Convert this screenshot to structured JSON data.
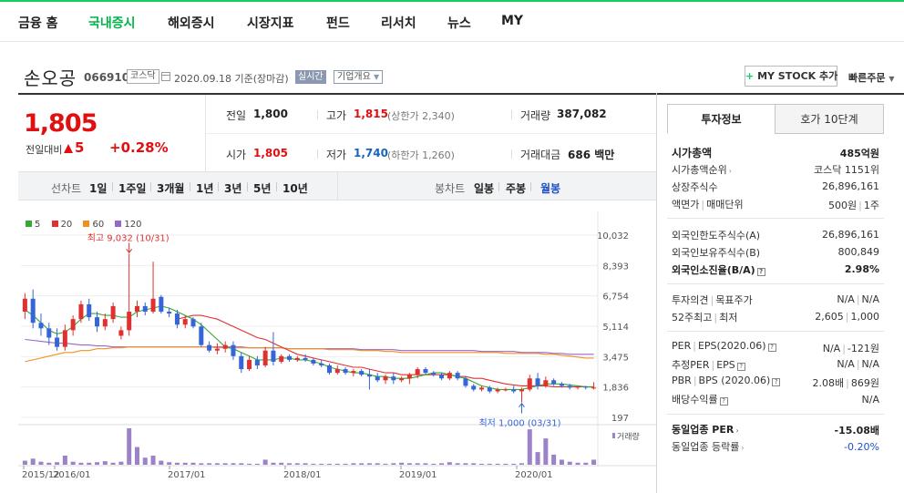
{
  "gnb": {
    "items": [
      {
        "label": "금융 홈",
        "active": false
      },
      {
        "label": "국내증시",
        "active": true
      },
      {
        "label": "해외증시",
        "active": false
      },
      {
        "label": "시장지표",
        "active": false
      },
      {
        "label": "펀드",
        "active": false
      },
      {
        "label": "리서치",
        "active": false
      },
      {
        "label": "뉴스",
        "active": false
      },
      {
        "label": "MY",
        "active": false
      }
    ]
  },
  "stock": {
    "name": "손오공",
    "code": "066910",
    "market": "코스닥",
    "date": "2020.09.18",
    "date_suffix": "기준(장마감)",
    "realtime": "실시간",
    "overview": "기업개요",
    "mystock_label": "MY STOCK 추가",
    "quick_order": "빠른주문"
  },
  "price": {
    "now": "1,805",
    "diff_label": "전일대비",
    "diff": "5",
    "pct": "+0.28%"
  },
  "info": {
    "prev_label": "전일",
    "prev": "1,800",
    "high_label": "고가",
    "high": "1,815",
    "upper_limit": "(상한가 2,340)",
    "volume_label": "거래량",
    "volume": "387,082",
    "open_label": "시가",
    "open": "1,805",
    "low_label": "저가",
    "low": "1,740",
    "lower_limit": "(하한가 1,260)",
    "amount_label": "거래대금",
    "amount": "686 백만"
  },
  "tabs": {
    "line_label": "선차트",
    "periods": [
      "1일",
      "1주일",
      "3개월",
      "1년",
      "3년",
      "5년",
      "10년"
    ],
    "candle_label": "봉차트",
    "candles": [
      "일봉",
      "주봉",
      "월봉"
    ],
    "selected_candle": "월봉"
  },
  "chart_data": {
    "type": "candlestick",
    "legend": [
      {
        "name": "5",
        "color": "#33aa33"
      },
      {
        "name": "20",
        "color": "#e03030"
      },
      {
        "name": "60",
        "color": "#f09020"
      },
      {
        "name": "120",
        "color": "#9966cc"
      }
    ],
    "y_ticks": [
      "10,032",
      "8,393",
      "6,754",
      "5,114",
      "3,475",
      "1,836",
      "197"
    ],
    "y_range": [
      197,
      10032
    ],
    "x_ticks": [
      "2015/12",
      "2016/01",
      "2017/01",
      "2018/01",
      "2019/01",
      "2020/01"
    ],
    "annotation_high": "최고 9,032 (10/31)",
    "annotation_low": "최저 1,000 (03/31)",
    "volume_label": "거래량",
    "candles": [
      {
        "x": 0,
        "o": 5900,
        "h": 6900,
        "l": 5500,
        "c": 6600
      },
      {
        "x": 1,
        "o": 6600,
        "h": 7100,
        "l": 5000,
        "c": 5300
      },
      {
        "x": 2,
        "o": 5300,
        "h": 5800,
        "l": 4600,
        "c": 5000
      },
      {
        "x": 3,
        "o": 5000,
        "h": 5300,
        "l": 4100,
        "c": 4500
      },
      {
        "x": 4,
        "o": 4500,
        "h": 5000,
        "l": 3800,
        "c": 4000
      },
      {
        "x": 5,
        "o": 4000,
        "h": 5200,
        "l": 3800,
        "c": 4900
      },
      {
        "x": 6,
        "o": 4900,
        "h": 5700,
        "l": 4600,
        "c": 5500
      },
      {
        "x": 7,
        "o": 5500,
        "h": 6500,
        "l": 5300,
        "c": 6300
      },
      {
        "x": 8,
        "o": 6300,
        "h": 6600,
        "l": 5400,
        "c": 5600
      },
      {
        "x": 9,
        "o": 5600,
        "h": 5900,
        "l": 4800,
        "c": 5100
      },
      {
        "x": 10,
        "o": 5100,
        "h": 5800,
        "l": 4900,
        "c": 5500
      },
      {
        "x": 11,
        "o": 5500,
        "h": 6400,
        "l": 5300,
        "c": 6200
      },
      {
        "x": 12,
        "o": 4600,
        "h": 5100,
        "l": 4400,
        "c": 4900
      },
      {
        "x": 13,
        "o": 4900,
        "h": 9032,
        "l": 4600,
        "c": 5900
      },
      {
        "x": 14,
        "o": 5900,
        "h": 6500,
        "l": 5600,
        "c": 6200
      },
      {
        "x": 15,
        "o": 6200,
        "h": 6400,
        "l": 5700,
        "c": 5900
      },
      {
        "x": 16,
        "o": 5900,
        "h": 8600,
        "l": 5800,
        "c": 6600
      },
      {
        "x": 17,
        "o": 6700,
        "h": 6800,
        "l": 5800,
        "c": 5900
      },
      {
        "x": 18,
        "o": 5900,
        "h": 6100,
        "l": 5600,
        "c": 5800
      },
      {
        "x": 19,
        "o": 5800,
        "h": 6000,
        "l": 5000,
        "c": 5200
      },
      {
        "x": 20,
        "o": 5200,
        "h": 5700,
        "l": 5000,
        "c": 5500
      },
      {
        "x": 21,
        "o": 5500,
        "h": 5600,
        "l": 5000,
        "c": 5100
      },
      {
        "x": 22,
        "o": 5100,
        "h": 5300,
        "l": 4000,
        "c": 4100
      },
      {
        "x": 23,
        "o": 4100,
        "h": 4300,
        "l": 3700,
        "c": 3800
      },
      {
        "x": 24,
        "o": 3800,
        "h": 4200,
        "l": 3600,
        "c": 3900
      },
      {
        "x": 25,
        "o": 3900,
        "h": 4300,
        "l": 3700,
        "c": 4100
      },
      {
        "x": 26,
        "o": 4100,
        "h": 4300,
        "l": 3300,
        "c": 3500
      },
      {
        "x": 27,
        "o": 3500,
        "h": 3700,
        "l": 2600,
        "c": 2800
      },
      {
        "x": 28,
        "o": 2800,
        "h": 3500,
        "l": 2700,
        "c": 3300
      },
      {
        "x": 29,
        "o": 3300,
        "h": 3500,
        "l": 2800,
        "c": 3000
      },
      {
        "x": 30,
        "o": 3000,
        "h": 4000,
        "l": 2900,
        "c": 3800
      },
      {
        "x": 31,
        "o": 3800,
        "h": 4800,
        "l": 3000,
        "c": 3200
      },
      {
        "x": 32,
        "o": 3200,
        "h": 3600,
        "l": 3100,
        "c": 3500
      },
      {
        "x": 33,
        "o": 3500,
        "h": 3600,
        "l": 3200,
        "c": 3300
      },
      {
        "x": 34,
        "o": 3300,
        "h": 3500,
        "l": 3200,
        "c": 3400
      },
      {
        "x": 35,
        "o": 3400,
        "h": 3600,
        "l": 3200,
        "c": 3300
      },
      {
        "x": 36,
        "o": 3300,
        "h": 3400,
        "l": 3000,
        "c": 3100
      },
      {
        "x": 37,
        "o": 3100,
        "h": 3300,
        "l": 2900,
        "c": 3000
      },
      {
        "x": 38,
        "o": 3000,
        "h": 3100,
        "l": 2500,
        "c": 2600
      },
      {
        "x": 39,
        "o": 2600,
        "h": 3000,
        "l": 2500,
        "c": 2800
      },
      {
        "x": 40,
        "o": 2800,
        "h": 2900,
        "l": 2500,
        "c": 2600
      },
      {
        "x": 41,
        "o": 2600,
        "h": 2800,
        "l": 2400,
        "c": 2700
      },
      {
        "x": 42,
        "o": 2700,
        "h": 2800,
        "l": 2400,
        "c": 2500
      },
      {
        "x": 43,
        "o": 2500,
        "h": 2800,
        "l": 1700,
        "c": 2400
      },
      {
        "x": 44,
        "o": 2400,
        "h": 2600,
        "l": 2100,
        "c": 2200
      },
      {
        "x": 45,
        "o": 2200,
        "h": 2500,
        "l": 2000,
        "c": 2400
      },
      {
        "x": 46,
        "o": 2400,
        "h": 2600,
        "l": 2000,
        "c": 2200
      },
      {
        "x": 47,
        "o": 2200,
        "h": 2400,
        "l": 2100,
        "c": 2300
      },
      {
        "x": 48,
        "o": 2300,
        "h": 2600,
        "l": 2000,
        "c": 2500
      },
      {
        "x": 49,
        "o": 2500,
        "h": 2900,
        "l": 2300,
        "c": 2800
      },
      {
        "x": 50,
        "o": 2800,
        "h": 2900,
        "l": 2500,
        "c": 2600
      },
      {
        "x": 51,
        "o": 2600,
        "h": 2700,
        "l": 2400,
        "c": 2500
      },
      {
        "x": 52,
        "o": 2500,
        "h": 2600,
        "l": 2200,
        "c": 2300
      },
      {
        "x": 53,
        "o": 2300,
        "h": 2700,
        "l": 2200,
        "c": 2600
      },
      {
        "x": 54,
        "o": 2600,
        "h": 2700,
        "l": 2200,
        "c": 2300
      },
      {
        "x": 55,
        "o": 2300,
        "h": 2400,
        "l": 1800,
        "c": 1900
      },
      {
        "x": 56,
        "o": 1900,
        "h": 2000,
        "l": 1600,
        "c": 1700
      },
      {
        "x": 57,
        "o": 1700,
        "h": 1900,
        "l": 1600,
        "c": 1800
      },
      {
        "x": 58,
        "o": 1800,
        "h": 1900,
        "l": 1500,
        "c": 1600
      },
      {
        "x": 59,
        "o": 1600,
        "h": 1800,
        "l": 1500,
        "c": 1700
      },
      {
        "x": 60,
        "o": 1700,
        "h": 1800,
        "l": 1600,
        "c": 1700
      },
      {
        "x": 61,
        "o": 1700,
        "h": 1900,
        "l": 1500,
        "c": 1600
      },
      {
        "x": 62,
        "o": 1600,
        "h": 1800,
        "l": 1000,
        "c": 1700
      },
      {
        "x": 63,
        "o": 1700,
        "h": 2500,
        "l": 1600,
        "c": 2300
      },
      {
        "x": 64,
        "o": 2300,
        "h": 2600,
        "l": 1700,
        "c": 1900
      },
      {
        "x": 65,
        "o": 1900,
        "h": 2400,
        "l": 1800,
        "c": 2200
      },
      {
        "x": 66,
        "o": 2200,
        "h": 2300,
        "l": 1900,
        "c": 2000
      },
      {
        "x": 67,
        "o": 2000,
        "h": 2100,
        "l": 1800,
        "c": 1900
      },
      {
        "x": 68,
        "o": 1900,
        "h": 2000,
        "l": 1700,
        "c": 1800
      },
      {
        "x": 69,
        "o": 1800,
        "h": 1900,
        "l": 1700,
        "c": 1850
      },
      {
        "x": 70,
        "o": 1850,
        "h": 1900,
        "l": 1700,
        "c": 1800
      },
      {
        "x": 71,
        "o": 1800,
        "h": 2100,
        "l": 1700,
        "c": 1805
      }
    ],
    "ma5": [
      6000,
      5700,
      5300,
      4900,
      4700,
      4800,
      5100,
      5500,
      5800,
      5800,
      5700,
      5700,
      5600,
      5600,
      5900,
      6000,
      6100,
      6200,
      6100,
      5900,
      5700,
      5500,
      5200,
      4800,
      4400,
      4000,
      3900,
      3700,
      3500,
      3300,
      3300,
      3300,
      3400,
      3400,
      3300,
      3300,
      3200,
      3100,
      2900,
      2800,
      2700,
      2600,
      2600,
      2500,
      2400,
      2400,
      2300,
      2300,
      2300,
      2400,
      2500,
      2600,
      2600,
      2500,
      2400,
      2300,
      2100,
      1900,
      1800,
      1700,
      1700,
      1700,
      1700,
      1800,
      1900,
      2000,
      2000,
      2000,
      1950,
      1900,
      1850,
      1820
    ],
    "ma20": [
      null,
      null,
      null,
      null,
      null,
      null,
      null,
      null,
      null,
      null,
      null,
      null,
      null,
      null,
      null,
      null,
      null,
      null,
      null,
      5500,
      5600,
      5700,
      5700,
      5600,
      5500,
      5300,
      5100,
      4900,
      4700,
      4500,
      4400,
      4200,
      4000,
      3800,
      3600,
      3500,
      3400,
      3300,
      3200,
      3100,
      3000,
      2900,
      2900,
      2800,
      2700,
      2600,
      2600,
      2500,
      2500,
      2500,
      2500,
      2500,
      2500,
      2500,
      2400,
      2400,
      2300,
      2300,
      2200,
      2100,
      2000,
      1950,
      1900,
      1900,
      1900,
      1900,
      1850,
      1850,
      1850,
      1850,
      1850,
      1850
    ],
    "ma60": [
      3200,
      3300,
      3400,
      3500,
      3600,
      3700,
      3700,
      3800,
      3800,
      3900,
      3900,
      3950,
      3950,
      4000,
      4000,
      4000,
      4000,
      4000,
      4000,
      4000,
      4000,
      4000,
      4000,
      4000,
      3950,
      3950,
      3950,
      3950,
      3950,
      3950,
      3950,
      3950,
      3950,
      3900,
      3900,
      3900,
      3900,
      3900,
      3850,
      3850,
      3850,
      3850,
      3800,
      3800,
      3800,
      3750,
      3750,
      3700,
      3700,
      3700,
      3700,
      3700,
      3700,
      3700,
      3700,
      3700,
      3700,
      3700,
      3700,
      3700,
      3650,
      3650,
      3650,
      3650,
      3650,
      3600,
      3600,
      3550,
      3500,
      3450,
      3400,
      3400
    ],
    "ma120": [
      4400,
      4350,
      4300,
      4250,
      4200,
      4200,
      4150,
      4100,
      4100,
      4050,
      4050,
      4000,
      4000,
      4000,
      4000,
      4000,
      4000,
      4000,
      4000,
      4000,
      4000,
      4000,
      4000,
      4000,
      4000,
      4000,
      4000,
      4000,
      3950,
      3950,
      3950,
      3950,
      3950,
      3900,
      3900,
      3900,
      3900,
      3900,
      3900,
      3900,
      3900,
      3900,
      3850,
      3850,
      3850,
      3850,
      3850,
      3800,
      3800,
      3800,
      3800,
      3800,
      3800,
      3800,
      3800,
      3800,
      3800,
      3750,
      3750,
      3750,
      3750,
      3750,
      3700,
      3700,
      3700,
      3700,
      3650,
      3650,
      3600,
      3600,
      3600,
      3600
    ],
    "volume": [
      8,
      12,
      6,
      4,
      5,
      18,
      6,
      4,
      4,
      5,
      7,
      4,
      6,
      72,
      35,
      14,
      18,
      8,
      5,
      4,
      4,
      4,
      3,
      3,
      3,
      3,
      3,
      3,
      2,
      2,
      10,
      4,
      4,
      3,
      3,
      3,
      2,
      2,
      2,
      2,
      2,
      3,
      3,
      3,
      3,
      2,
      3,
      4,
      3,
      3,
      3,
      2,
      3,
      5,
      3,
      3,
      3,
      2,
      2,
      2,
      2,
      2,
      3,
      70,
      25,
      52,
      20,
      10,
      6,
      4,
      4,
      10
    ]
  },
  "side": {
    "tab_info": "투자정보",
    "tab_hoga": "호가 10단계",
    "market_cap_label": "시가총액",
    "market_cap": "485억원",
    "rank_label": "시가총액순위",
    "rank": "코스닥 1151위",
    "shares_label": "상장주식수",
    "shares": "26,896,161",
    "par_label": "액면가",
    "unit_label": "매매단위",
    "par": "500원",
    "unit": "1주",
    "foreign_limit_label": "외국인한도주식수(A)",
    "foreign_limit": "26,896,161",
    "foreign_hold_label": "외국인보유주식수(B)",
    "foreign_hold": "800,849",
    "foreign_rate_label": "외국인소진율(B/A)",
    "foreign_rate": "2.98%",
    "opinion_label": "투자의견",
    "target_label": "목표주가",
    "opinion": "N/A",
    "target": "N/A",
    "week52_label": "52주최고",
    "week52_low_label": "최저",
    "week52_high": "2,605",
    "week52_low": "1,000",
    "per_label": "PER",
    "eps_label": "EPS(2020.06)",
    "per": "N/A",
    "eps": "-121원",
    "est_per_label": "추정PER",
    "est_eps_label": "EPS",
    "est_per": "N/A",
    "est_eps": "N/A",
    "pbr_label": "PBR",
    "bps_label": "BPS (2020.06)",
    "pbr": "2.08배",
    "bps": "869원",
    "div_label": "배당수익률",
    "div": "N/A",
    "sector_per_label": "동일업종 PER",
    "sector_per": "-15.08배",
    "sector_rate_label": "동일업종 등락률",
    "sector_rate": "-0.20%"
  }
}
